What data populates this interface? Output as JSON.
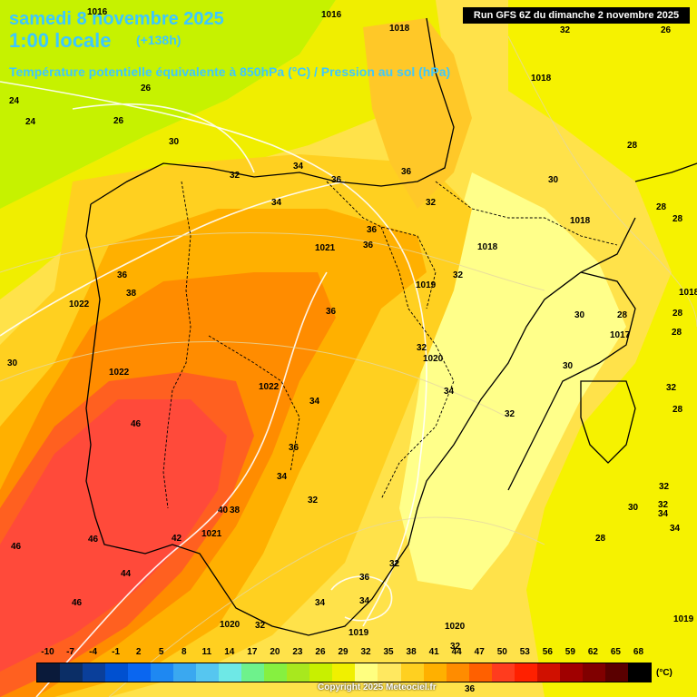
{
  "header": {
    "date": "samedi 8 novembre 2025",
    "time": "1:00 locale",
    "lead": "(+138h)",
    "parameter": "Température potentielle équivalente à 850hPa (°C) / Pression au sol (hPa)",
    "run": "Run GFS 6Z du dimanche 2 novembre 2025"
  },
  "legend": {
    "unit": "(°C)",
    "ticks": [
      "-10",
      "-7",
      "-4",
      "-1",
      "2",
      "5",
      "8",
      "11",
      "14",
      "17",
      "20",
      "23",
      "26",
      "29",
      "32",
      "35",
      "38",
      "41",
      "44",
      "47",
      "50",
      "53",
      "56",
      "59",
      "62",
      "65",
      "68"
    ],
    "colors": [
      "#0a1a3a",
      "#0b2e66",
      "#0a3f9a",
      "#0050d0",
      "#0a66f0",
      "#1e88f2",
      "#3aa8f0",
      "#56c6f0",
      "#6ee8e6",
      "#6ef28c",
      "#86f040",
      "#a8e81e",
      "#c8f000",
      "#f0f000",
      "#ffff80",
      "#ffe860",
      "#ffd020",
      "#ffb000",
      "#ff8c00",
      "#ff6000",
      "#ff3c1e",
      "#ff2000",
      "#d01000",
      "#a00000",
      "#800000",
      "#5a0000",
      "#000000"
    ]
  },
  "labels": {
    "temperature": [
      "26",
      "32",
      "26",
      "24",
      "24",
      "26",
      "30",
      "32",
      "34",
      "36",
      "36",
      "34",
      "36",
      "32",
      "28",
      "30",
      "28",
      "28",
      "28",
      "32",
      "36",
      "38",
      "32",
      "36",
      "32",
      "30",
      "28",
      "32",
      "34",
      "28",
      "32",
      "46",
      "34",
      "36",
      "40",
      "38",
      "42",
      "46",
      "44",
      "46",
      "46",
      "32",
      "34",
      "32",
      "30",
      "32",
      "34",
      "34",
      "36",
      "34",
      "32",
      "30",
      "32",
      "34",
      "28",
      "36",
      "28",
      "30"
    ],
    "pressure": [
      "1016",
      "1016",
      "1018",
      "1018",
      "1018",
      "1018",
      "1021",
      "1019",
      "1022",
      "1022",
      "1022",
      "1020",
      "1021",
      "1020",
      "1020",
      "1017",
      "1019",
      "1019",
      "1018"
    ]
  },
  "footer": {
    "copyright": "Copyright 2025 Meteociel.fr",
    "extra": "36"
  }
}
